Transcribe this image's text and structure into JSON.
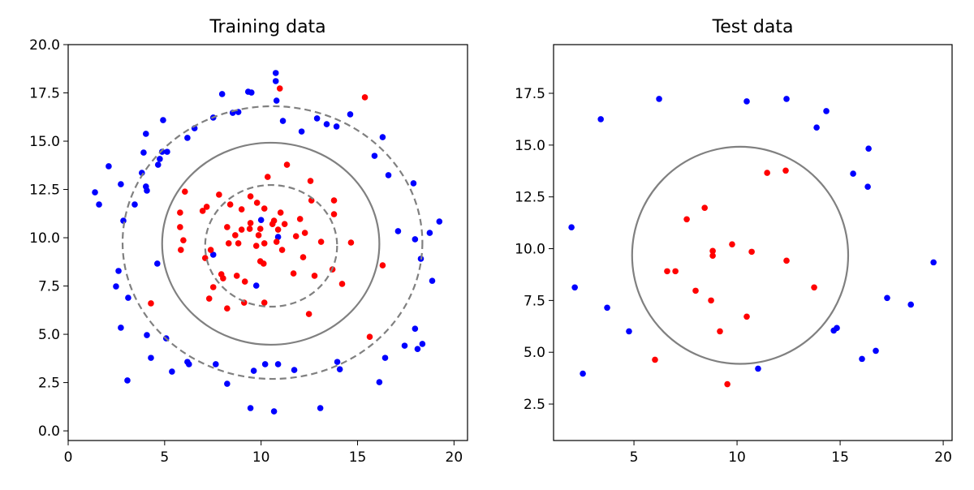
{
  "chart_data": [
    {
      "type": "scatter",
      "title": "Training data",
      "xlim": [
        0,
        20.7
      ],
      "ylim": [
        -0.5,
        20.0
      ],
      "xticks": [
        0,
        5,
        10,
        15,
        20
      ],
      "yticks": [
        {
          "value": 0,
          "label": "0.0"
        },
        2.5,
        {
          "value": 5,
          "label": "5.0"
        },
        7.5,
        {
          "value": 10,
          "label": "10.0"
        },
        12.5,
        {
          "value": 15,
          "label": "15.0"
        },
        17.5,
        {
          "value": 20,
          "label": "20.0"
        }
      ],
      "contour_color": "#808080",
      "contours": [
        {
          "cx": 10.5,
          "cy": 9.69,
          "rx": 5.63,
          "ry": 5.23,
          "dashed": false
        },
        {
          "cx": 10.59,
          "cy": 9.75,
          "rx": 7.77,
          "ry": 7.06,
          "dashed": true
        },
        {
          "cx": 10.52,
          "cy": 9.58,
          "rx": 3.42,
          "ry": 3.15,
          "dashed": true
        }
      ],
      "series": [
        {
          "color": "#0000ff",
          "x": [
            1.39,
            1.6,
            2.1,
            2.73,
            2.86,
            3.45,
            3.82,
            3.91,
            4.03,
            4.03,
            4.08,
            4.75,
            4.87,
            5.13,
            4.92,
            4.66,
            6.18,
            6.55,
            7.52,
            7.98,
            8.53,
            8.82,
            9.33,
            9.5,
            10.76,
            10.76,
            10.8,
            11.13,
            12.1,
            12.9,
            13.4,
            13.91,
            14.62,
            15.88,
            16.3,
            16.6,
            17.1,
            17.9,
            17.98,
            18.28,
            18.74,
            19.24,
            18.87,
            7.52,
            4.62,
            2.61,
            2.48,
            3.11,
            2.73,
            4.08,
            5.08,
            4.29,
            3.07,
            5.38,
            6.18,
            6.26,
            7.65,
            8.24,
            9.62,
            10.21,
            10.88,
            11.72,
            13.95,
            14.08,
            16.13,
            16.43,
            17.44,
            18.11,
            18.36,
            17.98,
            9.45,
            10.67,
            13.07,
            10.0,
            10.88,
            9.75
          ],
          "y": [
            12.35,
            11.72,
            13.7,
            12.77,
            10.88,
            11.72,
            13.36,
            14.41,
            15.38,
            12.65,
            12.44,
            14.08,
            14.45,
            14.45,
            16.09,
            13.78,
            15.17,
            15.67,
            16.22,
            17.44,
            16.47,
            16.51,
            17.56,
            17.52,
            18.53,
            18.11,
            17.1,
            16.05,
            15.5,
            16.18,
            15.88,
            15.76,
            16.39,
            14.24,
            15.21,
            13.24,
            10.34,
            12.82,
            9.92,
            8.91,
            10.25,
            10.84,
            7.77,
            9.12,
            8.66,
            8.28,
            7.48,
            6.89,
            5.34,
            4.96,
            4.79,
            3.78,
            2.61,
            3.07,
            3.57,
            3.45,
            3.45,
            2.44,
            3.11,
            3.45,
            3.45,
            3.15,
            3.57,
            3.19,
            2.52,
            3.78,
            4.41,
            4.24,
            4.5,
            5.29,
            1.18,
            1.01,
            1.18,
            10.92,
            10.04,
            7.52
          ]
        },
        {
          "color": "#ff0000",
          "x": [
            10.97,
            15.38,
            6.05,
            7.82,
            9.45,
            10.34,
            11.34,
            12.56,
            13.78,
            5.8,
            5.8,
            6.97,
            7.18,
            8.4,
            8.99,
            9.79,
            10.17,
            11.01,
            12.02,
            12.61,
            13.78,
            5.84,
            5.97,
            7.1,
            7.39,
            8.24,
            8.66,
            8.99,
            9.41,
            9.96,
            10.59,
            11.22,
            11.81,
            12.27,
            13.11,
            14.66,
            7.52,
            8.03,
            7.94,
            8.24,
            8.74,
            9.16,
            10.13,
            10.8,
            10.88,
            11.68,
            12.77,
            13.7,
            14.2,
            16.3,
            4.29,
            7.31,
            9.12,
            10.17,
            12.48,
            15.63,
            10.17,
            8.82,
            9.75,
            9.96,
            10.67,
            9.87,
            8.32,
            9.45,
            11.09,
            12.18
          ],
          "y": [
            17.73,
            17.27,
            12.39,
            12.23,
            12.14,
            13.15,
            13.78,
            12.94,
            11.93,
            11.3,
            10.55,
            11.39,
            11.6,
            11.72,
            11.47,
            11.81,
            11.51,
            11.3,
            10.97,
            11.93,
            11.22,
            9.37,
            9.87,
            8.95,
            9.37,
            10.55,
            10.13,
            10.42,
            10.46,
            10.46,
            10.71,
            10.71,
            10.08,
            10.25,
            9.79,
            9.75,
            7.44,
            7.9,
            8.11,
            6.34,
            8.03,
            7.73,
            8.66,
            9.79,
            10.42,
            8.15,
            8.03,
            8.36,
            7.61,
            8.57,
            6.6,
            6.85,
            6.64,
            6.64,
            6.05,
            4.87,
            9.71,
            9.71,
            9.58,
            8.78,
            10.88,
            10.13,
            9.71,
            10.76,
            9.37,
            8.99
          ]
        }
      ]
    },
    {
      "type": "scatter",
      "title": "Test data",
      "xlim": [
        1.1,
        20.43
      ],
      "ylim": [
        0.74,
        19.85
      ],
      "xticks": [
        5,
        10,
        15,
        20
      ],
      "yticks": [
        2.5,
        {
          "value": 5,
          "label": "5.0"
        },
        7.5,
        {
          "value": 10,
          "label": "10.0"
        },
        12.5,
        {
          "value": 15,
          "label": "15.0"
        },
        17.5
      ],
      "contour_color": "#808080",
      "contours": [
        {
          "cx": 10.15,
          "cy": 9.68,
          "rx": 5.24,
          "ry": 5.24,
          "dashed": false
        }
      ],
      "series": [
        {
          "color": "#0000ff",
          "x": [
            1.97,
            2.13,
            2.52,
            3.7,
            4.76,
            3.39,
            6.22,
            10.47,
            12.4,
            13.86,
            14.33,
            15.63,
            16.38,
            16.34,
            18.43,
            17.28,
            19.53,
            14.69,
            14.84,
            16.06,
            16.73,
            11.02
          ],
          "y": [
            11.03,
            8.13,
            3.97,
            7.15,
            6.01,
            16.25,
            17.23,
            17.11,
            17.23,
            15.85,
            16.64,
            13.62,
            14.83,
            12.99,
            7.3,
            7.62,
            9.34,
            6.05,
            6.17,
            4.68,
            5.07,
            4.21
          ]
        },
        {
          "color": "#ff0000",
          "x": [
            11.46,
            12.36,
            7.56,
            8.43,
            6.61,
            7.01,
            8.82,
            8.82,
            8.74,
            9.76,
            10.71,
            12.4,
            13.74,
            7.99,
            9.17,
            10.47,
            6.02,
            9.53
          ],
          "y": [
            13.66,
            13.77,
            11.42,
            11.97,
            8.91,
            8.91,
            9.89,
            9.66,
            7.5,
            10.21,
            9.85,
            9.42,
            8.13,
            7.97,
            6.01,
            6.72,
            4.64,
            3.46
          ]
        }
      ]
    }
  ]
}
